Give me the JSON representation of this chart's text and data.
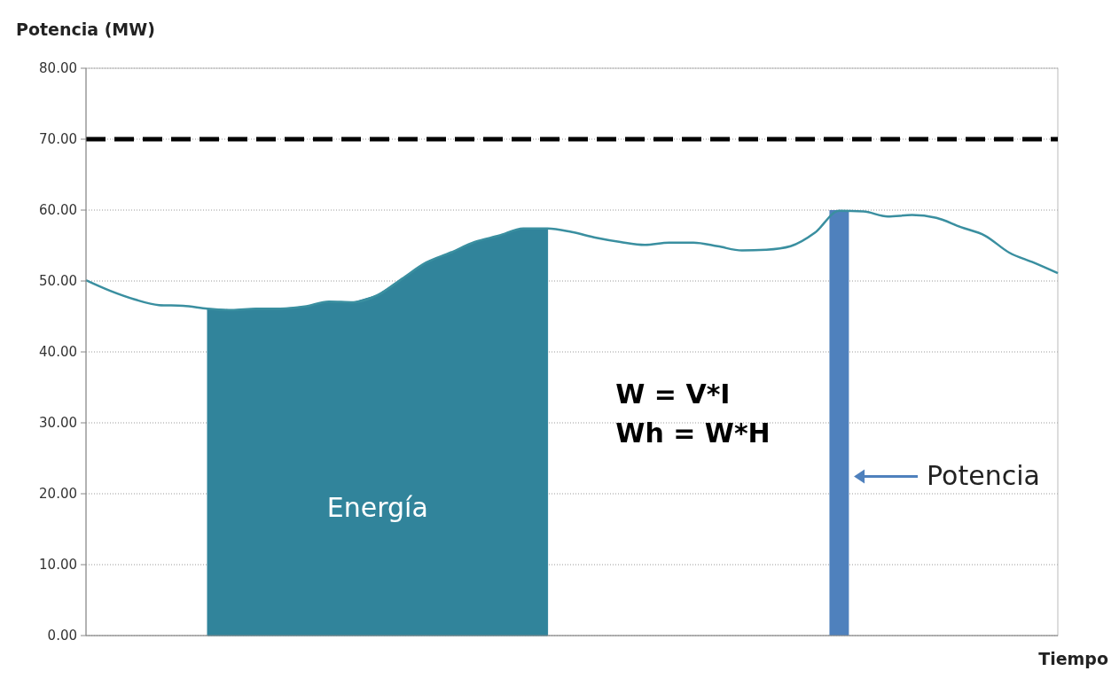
{
  "chart_data": {
    "type": "line",
    "xlabel": "Tiempo",
    "ylabel": "Potencia (MW)",
    "categories": [
      null,
      null,
      null,
      null,
      null,
      null,
      null,
      null,
      null,
      null,
      null,
      null,
      null,
      null,
      null,
      null,
      null,
      null,
      null,
      null,
      null,
      null,
      null,
      null,
      null,
      null,
      null,
      null,
      null,
      null,
      null,
      null,
      null,
      null,
      null,
      null,
      null,
      null,
      null,
      null,
      null
    ],
    "series": [
      {
        "type": "area",
        "color": "#31849b",
        "values": [
          null,
          null,
          null,
          null,
          null,
          46.1,
          45.9,
          46.1,
          46.1,
          46.4,
          47.1,
          47.0,
          48.0,
          50.3,
          52.6,
          54.0,
          55.5,
          56.4,
          57.4,
          57.4,
          null,
          null,
          null,
          null,
          null,
          null,
          null,
          null,
          null,
          null,
          null,
          null,
          null,
          null,
          null,
          null,
          null,
          null,
          null,
          null,
          null
        ]
      },
      {
        "type": "bar",
        "color": "#4f81bd",
        "values": [
          null,
          null,
          null,
          null,
          null,
          null,
          null,
          null,
          null,
          null,
          null,
          null,
          null,
          null,
          null,
          null,
          null,
          null,
          null,
          null,
          null,
          null,
          null,
          null,
          null,
          null,
          null,
          null,
          null,
          null,
          null,
          60,
          null,
          null,
          null,
          null,
          null,
          null,
          null,
          null,
          null
        ]
      },
      {
        "color": "#3a8fa0",
        "values": [
          50.1,
          48.6,
          47.4,
          46.6,
          46.5,
          46.1,
          45.9,
          46.1,
          46.1,
          46.4,
          47.1,
          47.0,
          48.0,
          50.3,
          52.6,
          54.0,
          55.5,
          56.4,
          57.4,
          57.4,
          56.9,
          56.1,
          55.5,
          55.1,
          55.4,
          55.4,
          54.9,
          54.3,
          54.4,
          54.9,
          56.8,
          59.9,
          59.8,
          59.1,
          59.3,
          58.9,
          57.6,
          56.4,
          54.0,
          52.6,
          51.1
        ]
      }
    ],
    "ylim": [
      0,
      80
    ],
    "yticks": [
      {
        "value": 0,
        "label": "0.00"
      },
      {
        "value": 10,
        "label": "10.00"
      },
      {
        "value": 20,
        "label": "20.00"
      },
      {
        "value": 30,
        "label": "30.00"
      },
      {
        "value": 40,
        "label": "40.00"
      },
      {
        "value": 50,
        "label": "50.00"
      },
      {
        "value": 60,
        "label": "60.00"
      },
      {
        "value": 70,
        "label": "70.00"
      },
      {
        "value": 80,
        "label": "80.00"
      }
    ],
    "grid": "y",
    "ref_lines": [
      {
        "axis": "y",
        "value": 70,
        "color": "#000000",
        "line_style": "dashed"
      }
    ],
    "annotations": [
      "Energía",
      "W = V*I",
      "Wh = W*H",
      "Potencia"
    ]
  }
}
